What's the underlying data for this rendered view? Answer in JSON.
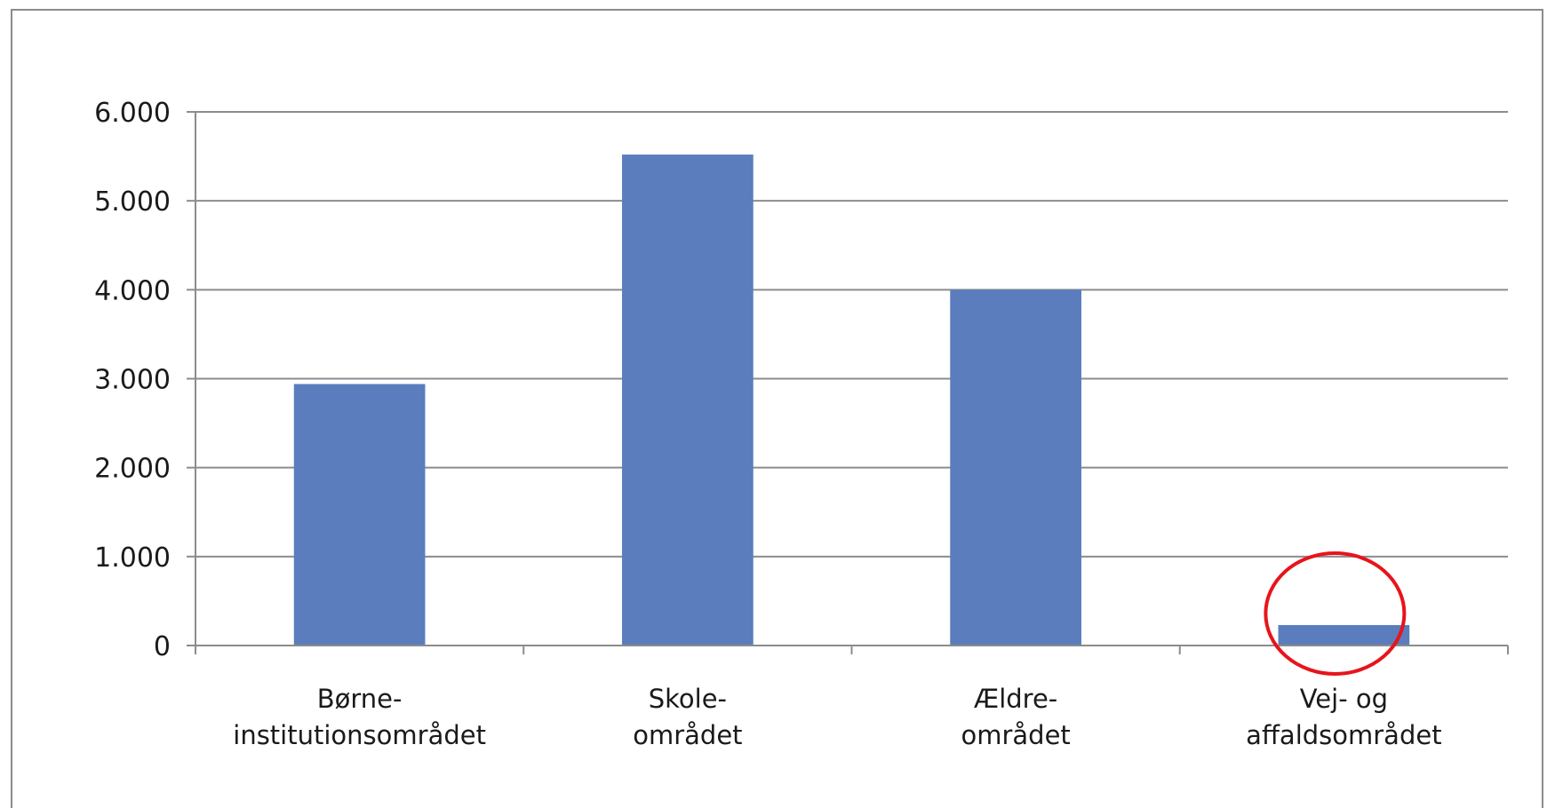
{
  "chart_data": {
    "type": "bar",
    "categories": [
      [
        "Børne-",
        "institutionsområdet"
      ],
      [
        "Skole-",
        "området"
      ],
      [
        "Ældre-",
        "området"
      ],
      [
        "Vej- og",
        "affaldsområdet"
      ]
    ],
    "values": [
      2940,
      5520,
      4000,
      230
    ],
    "ylim": [
      0,
      6000
    ],
    "yticks": [
      "0",
      "1.000",
      "2.000",
      "3.000",
      "4.000",
      "5.000",
      "6.000"
    ],
    "grid": true,
    "legend": "none",
    "bar_color": "#5b7dbd",
    "highlight": {
      "category_index": 3,
      "shape": "circle",
      "color": "#e8141b"
    }
  }
}
